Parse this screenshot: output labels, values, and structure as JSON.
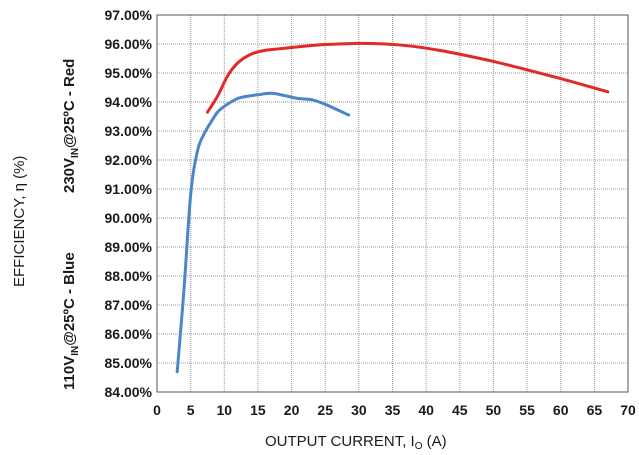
{
  "chart_data": {
    "type": "line",
    "xlabel": "OUTPUT CURRENT, I",
    "xlabel_sub": "O",
    "xlabel_unit": " (A)",
    "ylabel_main": "EFFICIENCY, η (%)",
    "ylabel_blue": {
      "pre": "110V",
      "sub": "IN",
      "post": "@25ºC - Blue"
    },
    "ylabel_red": {
      "pre": "230V",
      "sub": "IN",
      "post": "@25ºC - Red"
    },
    "xlim": [
      0,
      70
    ],
    "ylim": [
      84,
      97
    ],
    "x_ticks": [
      0,
      5,
      10,
      15,
      20,
      25,
      30,
      35,
      40,
      45,
      50,
      55,
      60,
      65,
      70
    ],
    "x_tick_labels": [
      "0",
      "5",
      "10",
      "15",
      "20",
      "25",
      "30",
      "35",
      "40",
      "45",
      "50",
      "55",
      "60",
      "65",
      "70"
    ],
    "y_ticks": [
      84,
      85,
      86,
      87,
      88,
      89,
      90,
      91,
      92,
      93,
      94,
      95,
      96,
      97
    ],
    "y_tick_labels": [
      "84.00%",
      "85.00%",
      "86.00%",
      "87.00%",
      "88.00%",
      "89.00%",
      "90.00%",
      "91.00%",
      "92.00%",
      "93.00%",
      "94.00%",
      "95.00%",
      "96.00%",
      "97.00%"
    ],
    "grid": true,
    "series": [
      {
        "color": "#e02a2a",
        "x": [
          7.5,
          9,
          10.5,
          12,
          14,
          16,
          18,
          20,
          23,
          26,
          30,
          34,
          38,
          42,
          46,
          50,
          54,
          58,
          62,
          67
        ],
        "y": [
          93.65,
          94.2,
          94.9,
          95.35,
          95.65,
          95.78,
          95.83,
          95.88,
          95.95,
          95.99,
          96.02,
          96.0,
          95.92,
          95.78,
          95.6,
          95.4,
          95.17,
          94.93,
          94.68,
          94.35
        ]
      },
      {
        "color": "#4a86c8",
        "x": [
          3,
          4,
          5,
          6,
          7,
          8,
          9,
          10,
          11,
          12,
          13,
          15,
          17,
          19,
          21,
          23,
          25,
          28.5
        ],
        "y": [
          84.7,
          87.5,
          90.8,
          92.3,
          92.9,
          93.3,
          93.65,
          93.85,
          94.0,
          94.12,
          94.18,
          94.25,
          94.3,
          94.22,
          94.12,
          94.08,
          93.92,
          93.55
        ]
      }
    ]
  }
}
